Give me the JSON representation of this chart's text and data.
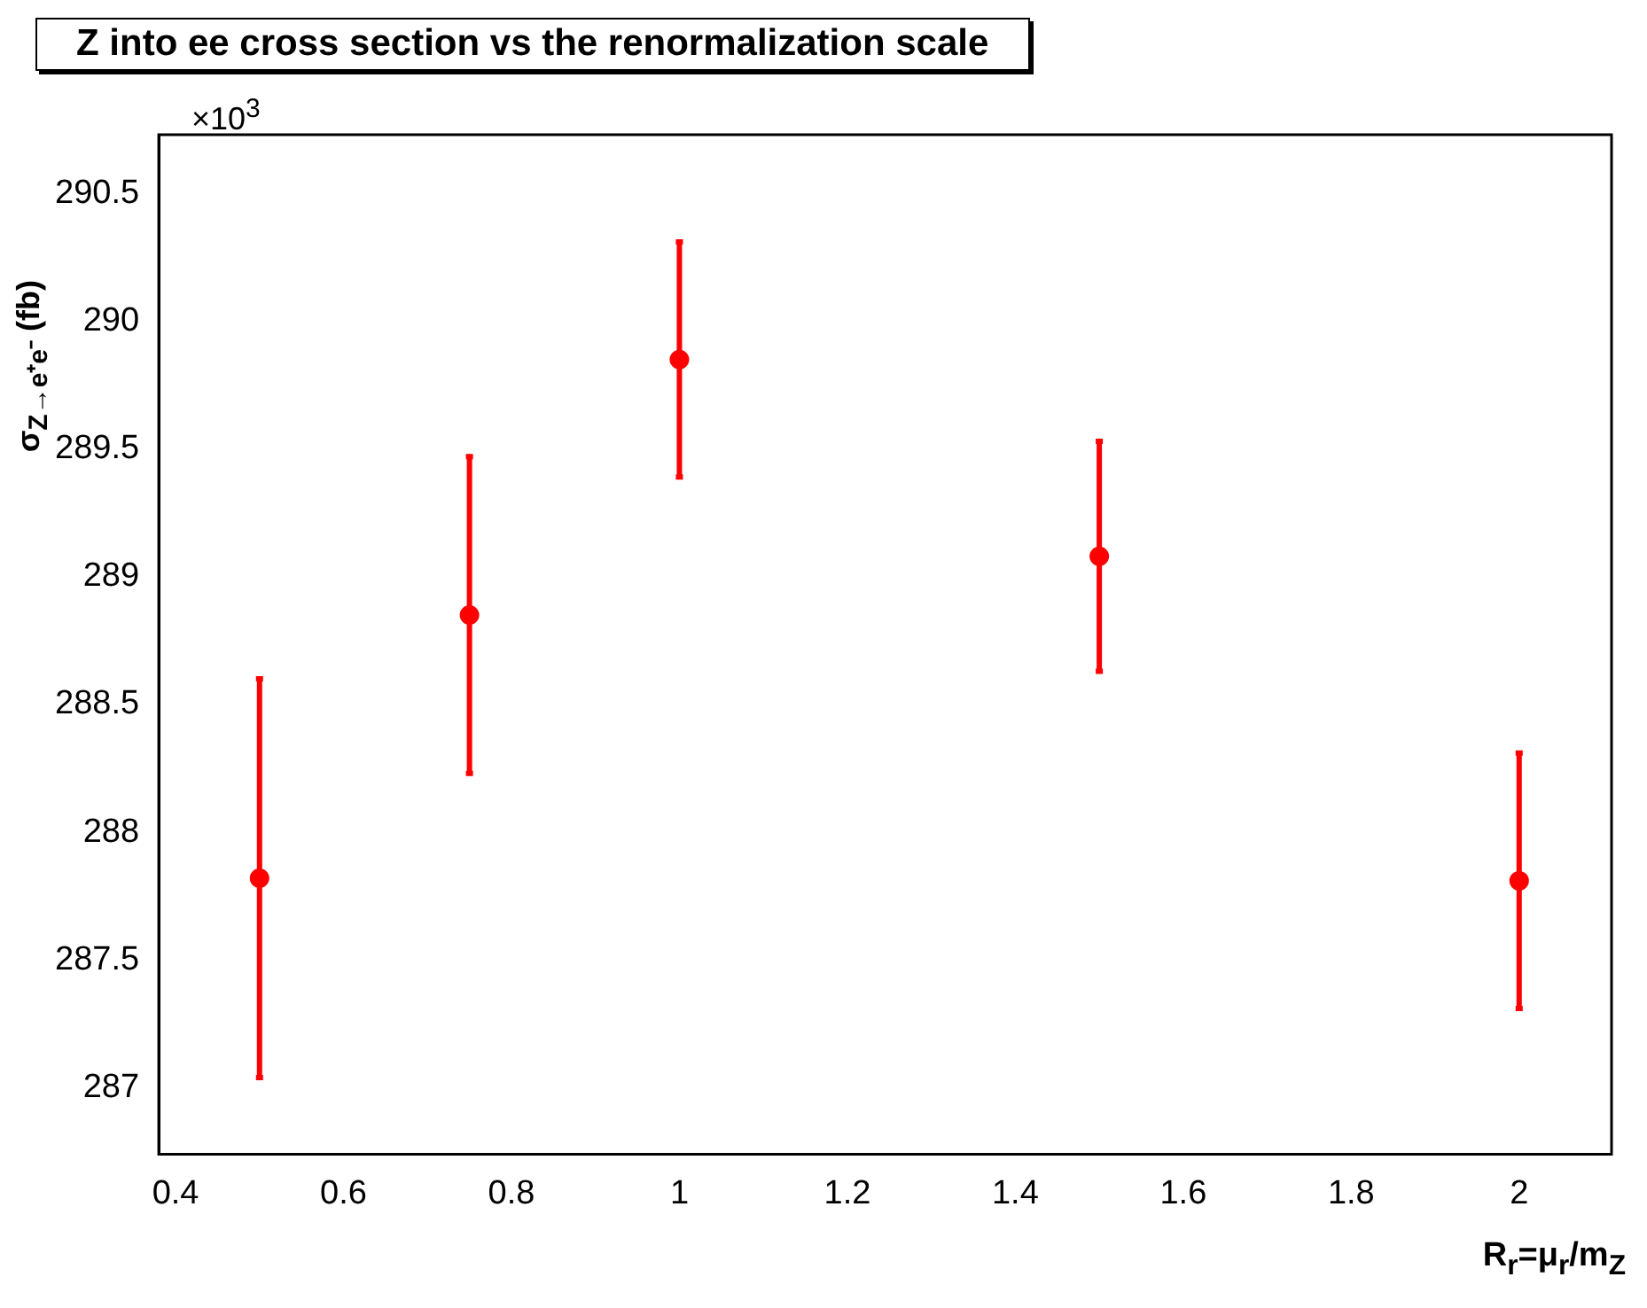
{
  "chart_data": {
    "type": "scatter",
    "title": "Z into ee cross section vs the renormalization scale",
    "xlabel": "R$_{r}$=μ$_{r}$/m$_{Z}$",
    "ylabel": "σ$_{Z→e⁺e⁻}$ (fb)",
    "annotations": [
      "×10$^{3}$"
    ],
    "x": [
      0.5,
      0.75,
      1,
      1.5,
      2
    ],
    "series": [
      {
        "color": "#ff0000",
        "values": [
          287.82,
          288.85,
          289.85,
          289.08,
          287.81
        ],
        "errors": [
          0.78,
          0.62,
          0.46,
          0.45,
          0.5
        ]
      }
    ],
    "xlim": [
      0.38,
      2.11
    ],
    "xticks": [
      0.4,
      0.6,
      0.8,
      1,
      1.2,
      1.4,
      1.6,
      1.8,
      2
    ],
    "ylim": [
      286.74,
      290.73
    ],
    "yticks": [
      287,
      287.5,
      288,
      288.5,
      289,
      289.5,
      290,
      290.5
    ],
    "marker": "circle",
    "grid": false,
    "legend": false
  }
}
